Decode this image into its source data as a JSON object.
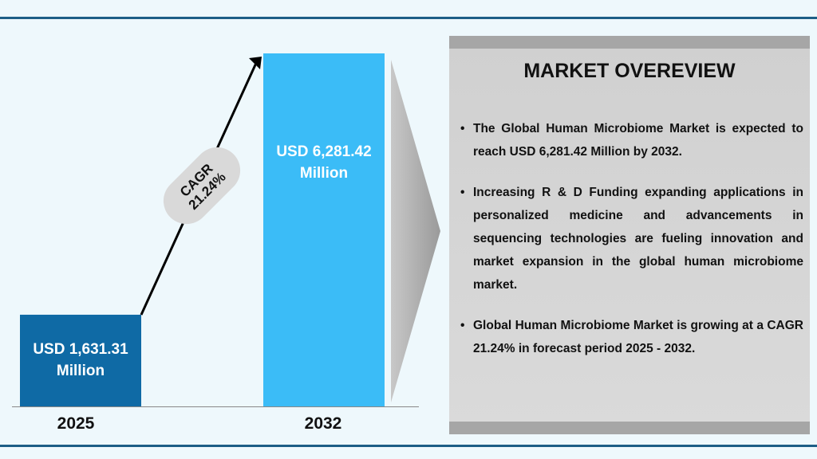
{
  "chart_data": {
    "type": "bar",
    "categories": [
      "2025",
      "2032"
    ],
    "values": [
      1631.31,
      6281.42
    ],
    "value_labels": [
      "USD 1,631.31 Million",
      "USD 6,281.42 Million"
    ],
    "colors": [
      "#0f6aa5",
      "#3bbcf7"
    ],
    "annotation": "CAGR 21.24%"
  },
  "overview": {
    "title": "MARKET OVEREVIEW",
    "bullets": [
      "The Global Human Microbiome Market is expected to reach USD 6,281.42 Million by 2032.",
      "Increasing R & D Funding expanding applications in personalized medicine and advancements in sequencing technologies are fueling innovation and market expansion in the global human microbiome market.",
      "Global Human Microbiome Market is growing at a CAGR 21.24% in forecast period 2025 - 2032."
    ]
  }
}
